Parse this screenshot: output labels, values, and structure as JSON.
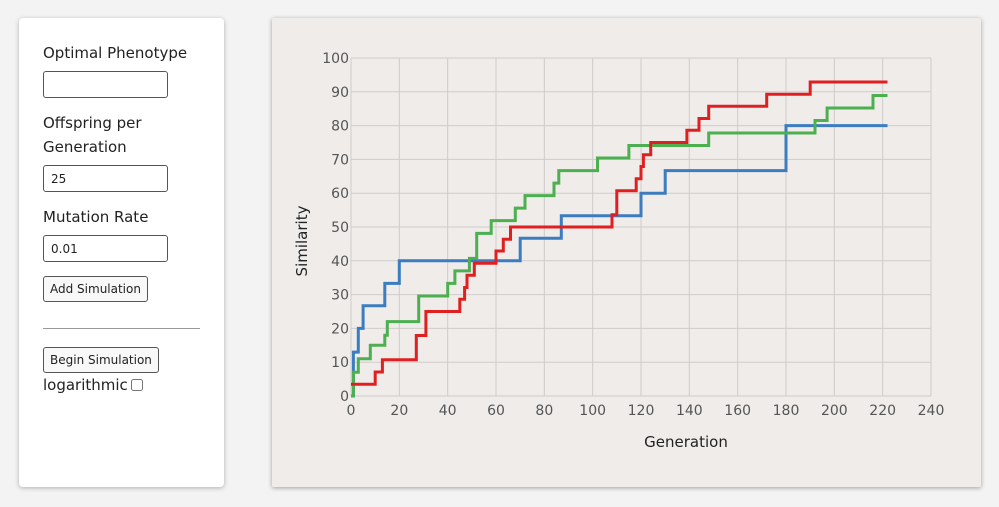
{
  "controls": {
    "phenotype_label": "Optimal Phenotype",
    "phenotype_value": "",
    "offspring_label_line1": "Offspring per",
    "offspring_label_line2": "Generation",
    "offspring_value": "25",
    "mutation_label": "Mutation Rate",
    "mutation_value": "0.01",
    "add_button": "Add Simulation",
    "begin_button": "Begin Simulation",
    "log_label": "logarithmic",
    "log_checked": false
  },
  "chart_data": {
    "type": "line",
    "title": "",
    "xlabel": "Generation",
    "ylabel": "Similarity",
    "xlim": [
      0,
      240
    ],
    "ylim": [
      0,
      100
    ],
    "xticks": [
      0,
      20,
      40,
      60,
      80,
      100,
      120,
      140,
      160,
      180,
      200,
      220,
      240
    ],
    "yticks": [
      0,
      10,
      20,
      30,
      40,
      50,
      60,
      70,
      80,
      90,
      100
    ],
    "grid": true,
    "step": true,
    "series": [
      {
        "color": "#3b7dbf",
        "x": [
          0,
          1,
          3,
          5,
          14,
          20,
          50,
          70,
          87,
          120,
          130,
          180,
          222
        ],
        "y": [
          0,
          13,
          20,
          26.7,
          33.3,
          40,
          40,
          46.7,
          53.3,
          60,
          66.7,
          80,
          80
        ]
      },
      {
        "color": "#4caf50",
        "x": [
          0,
          1,
          3,
          8,
          14,
          15,
          20,
          28,
          40,
          43,
          49,
          52,
          58,
          68,
          72,
          84,
          86,
          102,
          115,
          148,
          192,
          197,
          216,
          222
        ],
        "y": [
          0,
          7,
          11,
          15,
          18,
          22,
          22,
          29.6,
          33.3,
          37,
          40.7,
          48.1,
          51.9,
          55.6,
          59.3,
          63,
          66.7,
          70.4,
          74.1,
          77.8,
          81.5,
          85.2,
          88.9,
          88.9
        ]
      },
      {
        "color": "#e02020",
        "x": [
          0,
          10,
          13,
          27,
          31,
          45,
          47,
          48,
          51,
          60,
          63,
          66,
          69,
          108,
          110,
          118,
          120,
          121,
          124,
          129,
          139,
          144,
          148,
          172,
          190,
          222
        ],
        "y": [
          3.5,
          7.1,
          10.7,
          17.9,
          25,
          28.6,
          32.1,
          35.7,
          39.3,
          42.9,
          46.4,
          50,
          50,
          53.6,
          60.7,
          64.3,
          67.9,
          71.4,
          75,
          75,
          78.6,
          82.1,
          85.7,
          89.3,
          92.9,
          92.9
        ]
      }
    ]
  }
}
